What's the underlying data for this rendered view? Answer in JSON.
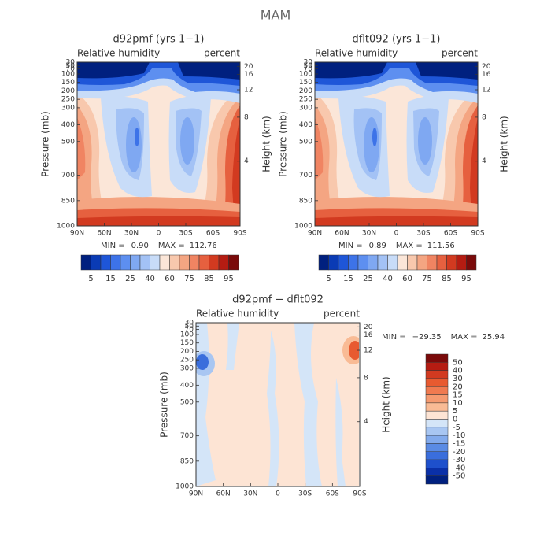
{
  "title": "MAM",
  "panels": [
    {
      "title": "d92pmf (yrs 1−1)",
      "left_label": "Relative humidity",
      "right_label": "percent",
      "ylabel": "Pressure (mb)",
      "y2label": "Height (km)",
      "xticks": [
        "90N",
        "60N",
        "30N",
        "0",
        "30S",
        "60S",
        "90S"
      ],
      "yticks": [
        30,
        50,
        70,
        100,
        150,
        200,
        250,
        300,
        400,
        500,
        700,
        850,
        1000
      ],
      "ylim": [
        1000,
        30
      ],
      "y2ticks": [
        20,
        16,
        12,
        8,
        4
      ],
      "min_label": "MIN =",
      "min": "0.90",
      "max_label": "MAX =",
      "max": "112.76",
      "colorbar": {
        "orientation": "horizontal",
        "labels": [
          5,
          15,
          25,
          40,
          60,
          75,
          85,
          95
        ],
        "colors": [
          "#00207f",
          "#0a3bb5",
          "#1e56d8",
          "#3d73e8",
          "#5d8ff0",
          "#7fa8f2",
          "#a3c2f5",
          "#c8dcf8",
          "#fbe6d8",
          "#f8c8ad",
          "#f4a582",
          "#f08462",
          "#e6603f",
          "#d23a20",
          "#b51c12",
          "#7a0a0a"
        ]
      }
    },
    {
      "title": "dflt092 (yrs 1−1)",
      "left_label": "Relative humidity",
      "right_label": "percent",
      "ylabel": "Pressure (mb)",
      "y2label": "Height (km)",
      "xticks": [
        "90N",
        "60N",
        "30N",
        "0",
        "30S",
        "60S",
        "90S"
      ],
      "yticks": [
        30,
        50,
        70,
        100,
        150,
        200,
        250,
        300,
        400,
        500,
        700,
        850,
        1000
      ],
      "ylim": [
        1000,
        30
      ],
      "y2ticks": [
        20,
        16,
        12,
        8,
        4
      ],
      "min_label": "MIN =",
      "min": "0.89",
      "max_label": "MAX =",
      "max": "111.56",
      "colorbar": {
        "orientation": "horizontal",
        "labels": [
          5,
          15,
          25,
          40,
          60,
          75,
          85,
          95
        ],
        "colors": [
          "#00207f",
          "#0a3bb5",
          "#1e56d8",
          "#3d73e8",
          "#5d8ff0",
          "#7fa8f2",
          "#a3c2f5",
          "#c8dcf8",
          "#fbe6d8",
          "#f8c8ad",
          "#f4a582",
          "#f08462",
          "#e6603f",
          "#d23a20",
          "#b51c12",
          "#7a0a0a"
        ]
      }
    },
    {
      "title": "d92pmf − dflt092",
      "left_label": "Relative humidity",
      "right_label": "percent",
      "ylabel": "Pressure (mb)",
      "y2label": "Height (km)",
      "xticks": [
        "90N",
        "60N",
        "30N",
        "0",
        "30S",
        "60S",
        "90S"
      ],
      "yticks": [
        30,
        50,
        70,
        100,
        150,
        200,
        250,
        300,
        400,
        500,
        700,
        850,
        1000
      ],
      "ylim": [
        1000,
        30
      ],
      "y2ticks": [
        20,
        16,
        12,
        8,
        4
      ],
      "min_label": "MIN =",
      "min": "−29.35",
      "max_label": "MAX =",
      "max": "25.94",
      "colorbar": {
        "orientation": "vertical",
        "labels": [
          50,
          40,
          30,
          20,
          15,
          10,
          5,
          0,
          -5,
          -10,
          -15,
          -20,
          -30,
          -40,
          -50
        ],
        "colors": [
          "#7a0a0a",
          "#b51c12",
          "#d23a20",
          "#e85a30",
          "#f07a50",
          "#f59a70",
          "#f9bb95",
          "#fde4d4",
          "#d4e5f8",
          "#a8c6f2",
          "#82aaec",
          "#5a8be4",
          "#3a6edc",
          "#1e50cc",
          "#0a30a8",
          "#00207f"
        ]
      }
    }
  ]
}
